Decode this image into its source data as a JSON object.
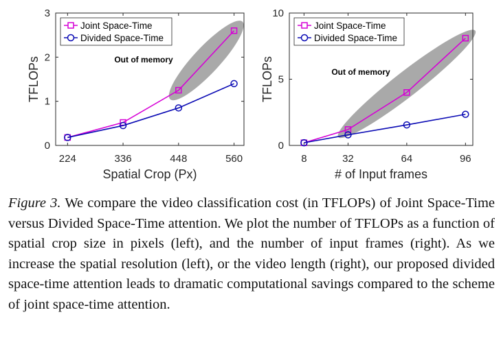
{
  "chart_data": [
    {
      "type": "line",
      "title": "",
      "xlabel": "Spatial Crop (Px)",
      "ylabel": "TFLOPs",
      "categories": [
        "224",
        "336",
        "448",
        "560"
      ],
      "x": [
        224,
        336,
        448,
        560
      ],
      "xlim": [
        200,
        580
      ],
      "ylim": [
        0,
        3
      ],
      "yticks": [
        0,
        1,
        2,
        3
      ],
      "grid": false,
      "legend_position": "top-left",
      "series": [
        {
          "name": "Joint Space-Time",
          "values": [
            0.18,
            0.52,
            1.25,
            2.6
          ],
          "color": "#d600d6",
          "marker": "square"
        },
        {
          "name": "Divided Space-Time",
          "values": [
            0.18,
            0.45,
            0.85,
            1.4
          ],
          "color": "#0a0ab4",
          "marker": "circle"
        }
      ],
      "annotation": "Out of memory",
      "annotation_region": {
        "x_from": 448,
        "x_to": 560,
        "y_from": 1.25,
        "y_to": 2.6
      }
    },
    {
      "type": "line",
      "title": "",
      "xlabel": "# of Input frames",
      "ylabel": "TFLOPs",
      "categories": [
        "8",
        "32",
        "64",
        "96"
      ],
      "x": [
        8,
        32,
        64,
        96
      ],
      "xlim": [
        0,
        100
      ],
      "ylim": [
        0,
        10
      ],
      "yticks": [
        0,
        5,
        10
      ],
      "grid": false,
      "legend_position": "top-left",
      "series": [
        {
          "name": "Joint Space-Time",
          "values": [
            0.2,
            1.2,
            4.0,
            8.1
          ],
          "color": "#d600d6",
          "marker": "square"
        },
        {
          "name": "Divided Space-Time",
          "values": [
            0.2,
            0.8,
            1.55,
            2.35
          ],
          "color": "#0a0ab4",
          "marker": "circle"
        }
      ],
      "annotation": "Out of memory",
      "annotation_region": {
        "x_from": 32,
        "x_to": 96,
        "y_from": 1.2,
        "y_to": 8.1
      }
    }
  ],
  "caption": {
    "label": "Figure 3.",
    "text": " We compare the video classification cost (in TFLOPs) of Joint Space-Time versus Divided Space-Time attention. We plot the number of TFLOPs as a function of spatial crop size in pixels (left), and the number of input frames (right). As we increase the spatial resolution (left), or the video length (right), our proposed divided space-time attention leads to dramatic computational savings compared to the scheme of joint space-time attention."
  }
}
